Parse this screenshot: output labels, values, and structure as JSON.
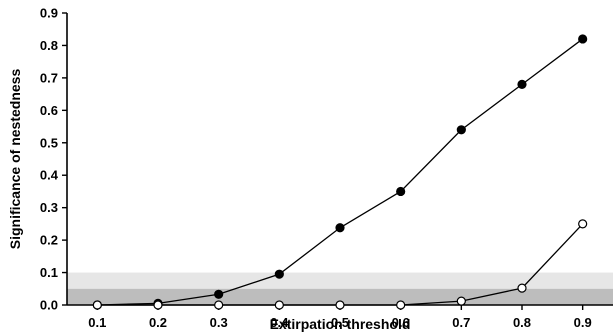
{
  "chart_data": {
    "type": "line",
    "title": "",
    "xlabel": "Extirpation threshold",
    "ylabel": "Significance of nestedness",
    "x": [
      0.1,
      0.2,
      0.3,
      0.4,
      0.5,
      0.6,
      0.7,
      0.8,
      0.9
    ],
    "x_tick_labels": [
      "0.1",
      "0.2",
      "0.3",
      "0.4",
      "0.5",
      "0.6",
      "0.7",
      "0.8",
      "0.9"
    ],
    "y_tick_labels": [
      "0.0",
      "0.1",
      "0.2",
      "0.3",
      "0.4",
      "0.5",
      "0.6",
      "0.7",
      "0.8",
      "0.9"
    ],
    "ylim": [
      0,
      0.9
    ],
    "xlim": [
      0.05,
      0.95
    ],
    "grid": false,
    "legend": "none",
    "shaded_bands": [
      {
        "from": 0.05,
        "to": 0.1,
        "color": "#e6e6e6"
      },
      {
        "from": 0.0,
        "to": 0.05,
        "color": "#bdbdbd"
      }
    ],
    "series": [
      {
        "marker": "filled-circle",
        "color": "#000000",
        "values": [
          0.0,
          0.005,
          0.033,
          0.095,
          0.238,
          0.35,
          0.54,
          0.68,
          0.82
        ]
      },
      {
        "marker": "open-circle",
        "color": "#000000",
        "values": [
          0.0,
          0.0,
          0.0,
          0.0,
          0.0,
          0.0,
          0.012,
          0.052,
          0.25
        ]
      }
    ]
  }
}
